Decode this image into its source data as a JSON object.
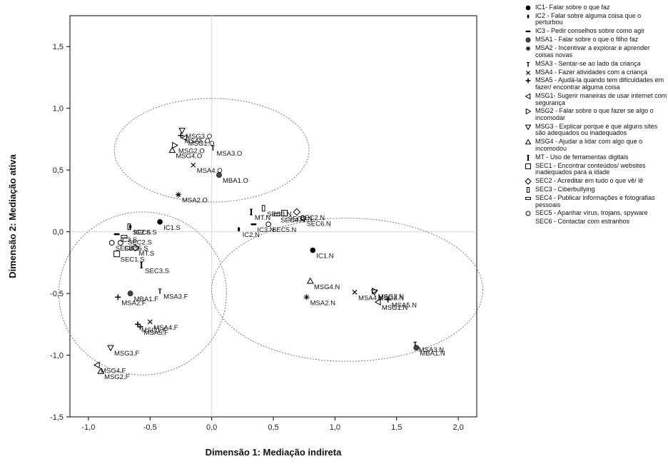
{
  "chart_data": {
    "type": "scatter",
    "xlabel": "Dimensão 1: Mediação indireta",
    "ylabel": "Dimensão 2: Mediação ativa",
    "xlim": [
      -1.15,
      2.15
    ],
    "ylim": [
      -1.5,
      1.75
    ],
    "xticks": [
      -1.0,
      -0.5,
      0.0,
      0.5,
      1.0,
      1.5,
      2.0
    ],
    "xtick_labels": [
      "-1,0",
      "-0,5",
      "0,0",
      "0,5",
      "1,0",
      "1,5",
      "2,0"
    ],
    "yticks": [
      -1.5,
      -1.0,
      -0.5,
      0.0,
      0.5,
      1.0,
      1.5
    ],
    "ytick_labels": [
      "-1,5",
      "-1,0",
      "-0,5",
      "0,0",
      "0,5",
      "1,0",
      "1,5"
    ],
    "reference_lines": {
      "x": 0,
      "y": 0
    },
    "grid": false,
    "legend_position": "right",
    "clusters": [
      {
        "name": "O",
        "center": [
          0.0,
          0.66
        ],
        "radii": [
          0.79,
          0.42
        ]
      },
      {
        "name": "S/F",
        "center": [
          -0.56,
          -0.5
        ],
        "radii": [
          0.68,
          0.66
        ]
      },
      {
        "name": "N",
        "center": [
          1.1,
          -0.47
        ],
        "radii": [
          1.1,
          0.58
        ]
      }
    ],
    "points": [
      {
        "label": "MSA5.O",
        "x": -0.25,
        "y": 0.78,
        "marker": "plus"
      },
      {
        "label": "MSG3.O",
        "x": -0.24,
        "y": 0.82,
        "marker": "tri_down"
      },
      {
        "label": "MSG1.O",
        "x": -0.22,
        "y": 0.76,
        "marker": "tri_left"
      },
      {
        "label": "MSG2.O",
        "x": -0.3,
        "y": 0.7,
        "marker": "tri_right"
      },
      {
        "label": "MSG4.O",
        "x": -0.32,
        "y": 0.66,
        "marker": "tri_up"
      },
      {
        "label": "MSA3.O",
        "x": 0.01,
        "y": 0.68,
        "marker": "t_mark"
      },
      {
        "label": "MSA4.O",
        "x": -0.15,
        "y": 0.54,
        "marker": "x"
      },
      {
        "label": "MBA1.O",
        "x": 0.06,
        "y": 0.46,
        "marker": "dot_gray"
      },
      {
        "label": "MSA2.O",
        "x": -0.27,
        "y": 0.3,
        "marker": "star"
      },
      {
        "label": "SEC3.N",
        "x": 0.42,
        "y": 0.19,
        "marker": "rect_tall"
      },
      {
        "label": "MT.N",
        "x": 0.32,
        "y": 0.16,
        "marker": "ibeam"
      },
      {
        "label": "SEC1.N",
        "x": 0.59,
        "y": 0.15,
        "marker": "square"
      },
      {
        "label": "SEC2.N",
        "x": 0.69,
        "y": 0.16,
        "marker": "diamond"
      },
      {
        "label": "SEC4.N",
        "x": 0.53,
        "y": 0.14,
        "marker": "rect_wide"
      },
      {
        "label": "SEC6.N",
        "x": 0.74,
        "y": 0.11,
        "marker": "circle_open"
      },
      {
        "label": "IC2.N",
        "x": 0.22,
        "y": 0.02,
        "marker": "ellipse_v"
      },
      {
        "label": "IC3.N",
        "x": 0.34,
        "y": 0.06,
        "marker": "dash"
      },
      {
        "label": "SEC5.N",
        "x": 0.46,
        "y": 0.06,
        "marker": "circle_open"
      },
      {
        "label": "IC1.N",
        "x": 0.82,
        "y": -0.15,
        "marker": "dot"
      },
      {
        "label": "MSG4.N",
        "x": 0.8,
        "y": -0.4,
        "marker": "tri_up"
      },
      {
        "label": "MSA2.N",
        "x": 0.77,
        "y": -0.53,
        "marker": "star"
      },
      {
        "label": "MSA4.N",
        "x": 1.16,
        "y": -0.49,
        "marker": "x"
      },
      {
        "label": "MSG2.N",
        "x": 1.32,
        "y": -0.48,
        "marker": "tri_right"
      },
      {
        "label": "MSG3.N",
        "x": 1.32,
        "y": -0.49,
        "marker": "tri_down"
      },
      {
        "label": "MSA5.N",
        "x": 1.43,
        "y": -0.55,
        "marker": "plus"
      },
      {
        "label": "MSG1.N",
        "x": 1.35,
        "y": -0.57,
        "marker": "tri_left"
      },
      {
        "label": "MSA3.N",
        "x": 1.65,
        "y": -0.91,
        "marker": "t_mark"
      },
      {
        "label": "MBA1.N",
        "x": 1.66,
        "y": -0.94,
        "marker": "dot_gray"
      },
      {
        "label": "SEC6.S",
        "x": -0.67,
        "y": 0.04,
        "marker": "rect_tall"
      },
      {
        "label": "IC2.S",
        "x": -0.66,
        "y": 0.04,
        "marker": "ellipse_v"
      },
      {
        "label": "IC1.S",
        "x": -0.42,
        "y": 0.08,
        "marker": "dot"
      },
      {
        "label": "IC3.S",
        "x": -0.77,
        "y": -0.02,
        "marker": "dash"
      },
      {
        "label": "SEC2.S",
        "x": -0.71,
        "y": -0.04,
        "marker": "rect_wide"
      },
      {
        "label": "SEC4.S",
        "x": -0.81,
        "y": -0.09,
        "marker": "circle_open"
      },
      {
        "label": "SEC5.S",
        "x": -0.74,
        "y": -0.09,
        "marker": "circle_open"
      },
      {
        "label": "MT.S",
        "x": -0.62,
        "y": -0.13,
        "marker": "diamond"
      },
      {
        "label": "SEC1.S",
        "x": -0.77,
        "y": -0.18,
        "marker": "square"
      },
      {
        "label": "SEC3.S",
        "x": -0.57,
        "y": -0.27,
        "marker": "ibeam"
      },
      {
        "label": "MSA2.F",
        "x": -0.76,
        "y": -0.53,
        "marker": "plus"
      },
      {
        "label": "MBA1.F",
        "x": -0.66,
        "y": -0.5,
        "marker": "dot_gray"
      },
      {
        "label": "MSA3.F",
        "x": -0.42,
        "y": -0.48,
        "marker": "t_mark"
      },
      {
        "label": "MSA4.F",
        "x": -0.5,
        "y": -0.73,
        "marker": "x"
      },
      {
        "label": "MSG1.F",
        "x": -0.6,
        "y": -0.75,
        "marker": "plus"
      },
      {
        "label": "MSA5.F",
        "x": -0.58,
        "y": -0.77,
        "marker": "plus"
      },
      {
        "label": "MSG3.F",
        "x": -0.82,
        "y": -0.94,
        "marker": "tri_down"
      },
      {
        "label": "MSG4.F",
        "x": -0.93,
        "y": -1.08,
        "marker": "tri_left"
      },
      {
        "label": "MSG2.F",
        "x": -0.9,
        "y": -1.13,
        "marker": "tri_up"
      }
    ],
    "legend": [
      {
        "marker": "dot",
        "text": "IC1- Falar sobre o que faz"
      },
      {
        "marker": "ellipse_v",
        "text": "IC2 - Falar sobre alguma coisa que o perturbou"
      },
      {
        "marker": "dash",
        "text": "IC3 - Pedir conselhos sobre como agir"
      },
      {
        "marker": "dot_gray",
        "text": "MSA1 - Falar sobre o que o filho faz"
      },
      {
        "marker": "star",
        "text": "MSA2 - Incentivar a explorar e aprender coisas novas"
      },
      {
        "marker": "t_mark",
        "text": "MSA3 - Sentar-se ao lado da criança"
      },
      {
        "marker": "x",
        "text": "MSA4 - Fazer atividades com a criança"
      },
      {
        "marker": "plus",
        "text": "MSA5 - Ajudá-la quando tem dificuldades em fazer/ encontrar alguma coisa"
      },
      {
        "marker": "tri_left",
        "text": "MSG1- Sugerir maneiras de usar internet com segurança"
      },
      {
        "marker": "tri_right",
        "text": "MSG2 - Falar sobre o que fazer se algo o incomodar"
      },
      {
        "marker": "tri_down",
        "text": "MSG3 - Explicar porque é que alguns sites são adequados ou inadequados"
      },
      {
        "marker": "tri_up",
        "text": "MSG4 - Ajudar a lidar com algo que o incomodou"
      },
      {
        "marker": "ibeam",
        "text": "MT - Uso de ferramentas digitais"
      },
      {
        "marker": "square",
        "text": "SEC1 - Encontrar conteúdos/ websites inadequados para a idade"
      },
      {
        "marker": "diamond",
        "text": "SEC2 - Acreditar em tudo o que vê/ lê"
      },
      {
        "marker": "rect_tall",
        "text": "SEC3 - Ciberbullying"
      },
      {
        "marker": "rect_wide",
        "text": "SEC4 - Publicar informações e fotografias pessoais"
      },
      {
        "marker": "circle_open",
        "text": "SEC5 - Apanhar vírus, trojans, spyware"
      },
      {
        "marker": "none",
        "text": "SEC6 - Contactar com estranhos"
      }
    ]
  }
}
